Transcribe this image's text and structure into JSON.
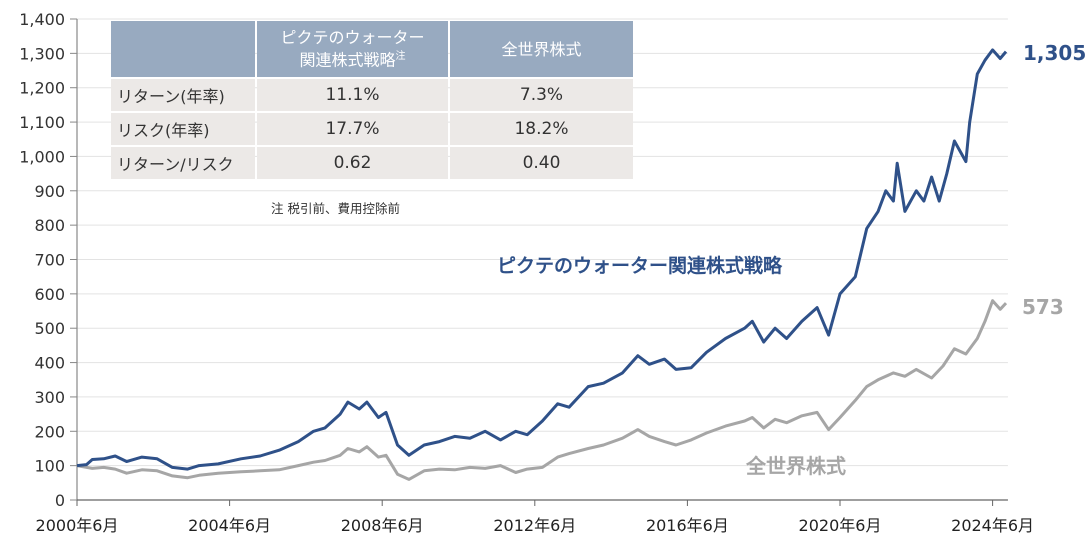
{
  "chart_data": {
    "type": "line",
    "title": "",
    "xlabel": "",
    "ylabel": "",
    "ylim": [
      0,
      1400
    ],
    "yticks": [
      0,
      100,
      200,
      300,
      400,
      500,
      600,
      700,
      800,
      900,
      1000,
      1100,
      1200,
      1300,
      1400
    ],
    "ytick_labels": [
      "0",
      "100",
      "200",
      "300",
      "400",
      "500",
      "600",
      "700",
      "800",
      "900",
      "1,000",
      "1,100",
      "1,200",
      "1,300",
      "1,400"
    ],
    "xlim": [
      2000.5,
      2024.85
    ],
    "xticks": [
      2000.5,
      2004.5,
      2008.5,
      2012.5,
      2016.5,
      2020.5,
      2024.5
    ],
    "xtick_labels": [
      "2000年6月",
      "2004年6月",
      "2008年6月",
      "2012年6月",
      "2016年6月",
      "2020年6月",
      "2024年6月"
    ],
    "grid": true,
    "series": [
      {
        "name": "ピクテのウォーター関連株式戦略",
        "color": "#2f5189",
        "end_label": "1,305",
        "x": [
          2000.5,
          2000.75,
          2000.9,
          2001.2,
          2001.5,
          2001.8,
          2002.2,
          2002.6,
          2003.0,
          2003.4,
          2003.7,
          2004.2,
          2004.8,
          2005.3,
          2005.8,
          2006.3,
          2006.7,
          2007.0,
          2007.4,
          2007.6,
          2007.9,
          2008.1,
          2008.4,
          2008.6,
          2008.9,
          2009.2,
          2009.6,
          2010.0,
          2010.4,
          2010.8,
          2011.2,
          2011.6,
          2012.0,
          2012.3,
          2012.7,
          2013.1,
          2013.4,
          2013.9,
          2014.3,
          2014.8,
          2015.2,
          2015.5,
          2015.9,
          2016.2,
          2016.6,
          2017.0,
          2017.5,
          2018.0,
          2018.2,
          2018.5,
          2018.8,
          2019.1,
          2019.5,
          2019.9,
          2020.2,
          2020.5,
          2020.9,
          2021.2,
          2021.5,
          2021.7,
          2021.9,
          2022.0,
          2022.2,
          2022.5,
          2022.7,
          2022.9,
          2023.1,
          2023.3,
          2023.5,
          2023.8,
          2023.9,
          2024.1,
          2024.3,
          2024.5,
          2024.7,
          2024.85
        ],
        "y": [
          100,
          103,
          118,
          120,
          128,
          112,
          125,
          120,
          95,
          90,
          100,
          105,
          120,
          128,
          145,
          170,
          200,
          210,
          250,
          285,
          265,
          285,
          240,
          255,
          160,
          130,
          160,
          170,
          185,
          180,
          200,
          175,
          200,
          190,
          230,
          280,
          270,
          330,
          340,
          370,
          420,
          395,
          410,
          380,
          385,
          430,
          470,
          500,
          520,
          460,
          500,
          470,
          520,
          560,
          480,
          600,
          650,
          790,
          840,
          900,
          870,
          980,
          840,
          900,
          870,
          940,
          870,
          950,
          1045,
          985,
          1100,
          1240,
          1280,
          1310,
          1285,
          1305
        ]
      },
      {
        "name": "全世界株式",
        "color": "#a6a6a6",
        "end_label": "573",
        "x": [
          2000.5,
          2000.9,
          2001.2,
          2001.5,
          2001.8,
          2002.2,
          2002.6,
          2003.0,
          2003.4,
          2003.7,
          2004.2,
          2004.8,
          2005.3,
          2005.8,
          2006.3,
          2006.7,
          2007.0,
          2007.4,
          2007.6,
          2007.9,
          2008.1,
          2008.4,
          2008.6,
          2008.9,
          2009.2,
          2009.6,
          2010.0,
          2010.4,
          2010.8,
          2011.2,
          2011.6,
          2012.0,
          2012.3,
          2012.7,
          2013.1,
          2013.4,
          2013.9,
          2014.3,
          2014.8,
          2015.2,
          2015.5,
          2015.9,
          2016.2,
          2016.6,
          2017.0,
          2017.5,
          2018.0,
          2018.2,
          2018.5,
          2018.8,
          2019.1,
          2019.5,
          2019.9,
          2020.2,
          2020.5,
          2020.9,
          2021.2,
          2021.5,
          2021.9,
          2022.2,
          2022.5,
          2022.9,
          2023.2,
          2023.5,
          2023.8,
          2024.1,
          2024.3,
          2024.5,
          2024.7,
          2024.85
        ],
        "y": [
          100,
          92,
          95,
          90,
          78,
          88,
          85,
          70,
          65,
          72,
          78,
          82,
          85,
          88,
          100,
          110,
          115,
          130,
          150,
          140,
          155,
          125,
          130,
          75,
          60,
          85,
          90,
          88,
          95,
          92,
          100,
          80,
          90,
          95,
          125,
          135,
          150,
          160,
          180,
          205,
          185,
          170,
          160,
          175,
          195,
          215,
          230,
          240,
          210,
          235,
          225,
          245,
          255,
          205,
          240,
          290,
          330,
          350,
          370,
          360,
          380,
          355,
          390,
          440,
          425,
          470,
          520,
          580,
          555,
          573
        ]
      }
    ]
  },
  "table": {
    "headers": [
      "",
      "ピクテのウォーター\n関連株式戦略",
      "全世界株式"
    ],
    "header_line1": "ピクテのウォーター",
    "header_line2": "関連株式戦略",
    "header_sup": "注",
    "header_col2": "全世界株式",
    "rows": [
      {
        "label": "リターン(年率)",
        "water": "11.1%",
        "world": "7.3%"
      },
      {
        "label": "リスク(年率)",
        "water": "17.7%",
        "world": "18.2%"
      },
      {
        "label": "リターン/リスク",
        "water": "0.62",
        "world": "0.40"
      }
    ],
    "note": "注 税引前、費用控除前"
  },
  "labels": {
    "water_series": "ピクテのウォーター関連株式戦略",
    "world_series": "全世界株式",
    "water_end": "1,305",
    "world_end": "573"
  }
}
